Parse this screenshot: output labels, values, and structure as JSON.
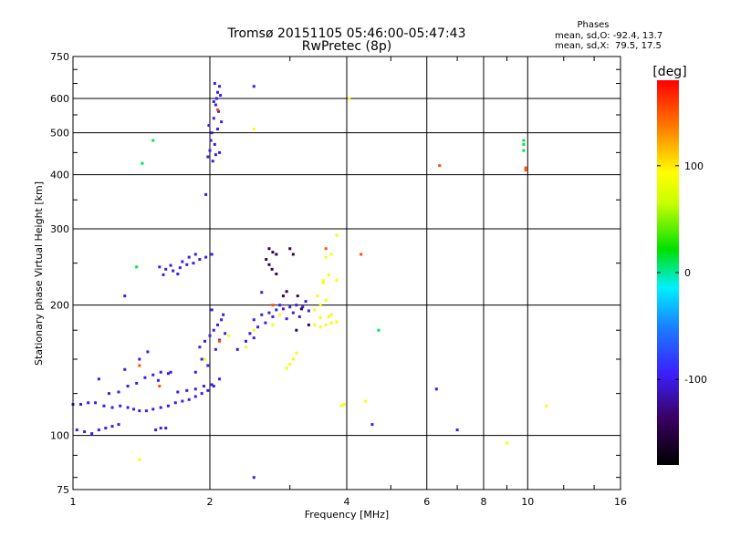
{
  "chart_data": {
    "type": "scatter",
    "title": "Tromsø 20151105 05:46:00-05:47:43",
    "subtitle": "RwPretec (8p)",
    "xlabel": "Frequency [MHz]",
    "ylabel": "Stationary phase Virtual Height [km]",
    "x_scale": "log",
    "y_scale": "log",
    "xlim": [
      1,
      16
    ],
    "ylim": [
      75,
      750
    ],
    "x_ticks": [
      1,
      2,
      4,
      6,
      8,
      10,
      16
    ],
    "y_ticks": [
      75,
      100,
      200,
      300,
      400,
      500,
      600,
      750
    ],
    "grid": true,
    "legend": {
      "title": "Phases",
      "lines": [
        "mean, sd,O: -92.4, 13.7",
        "mean, sd,X:  79.5, 17.5"
      ],
      "position": "top-right"
    },
    "colorbar": {
      "label": "[deg]",
      "min": -180,
      "max": 180,
      "ticks": [
        100,
        0,
        -100
      ]
    },
    "series": [
      {
        "values": [
          [
            1.0,
            118,
            -100
          ],
          [
            1.04,
            118,
            -100
          ],
          [
            1.08,
            119,
            -100
          ],
          [
            1.12,
            119,
            -100
          ],
          [
            1.17,
            117,
            -100
          ],
          [
            1.22,
            116,
            -100
          ],
          [
            1.27,
            117,
            -100
          ],
          [
            1.32,
            116,
            -100
          ],
          [
            1.36,
            115,
            -100
          ],
          [
            1.4,
            114,
            -100
          ],
          [
            1.45,
            114,
            -100
          ],
          [
            1.5,
            115,
            -100
          ],
          [
            1.56,
            116,
            -100
          ],
          [
            1.62,
            117,
            -100
          ],
          [
            1.68,
            119,
            -100
          ],
          [
            1.74,
            120,
            -100
          ],
          [
            1.8,
            121,
            -100
          ],
          [
            1.86,
            123,
            -100
          ],
          [
            1.92,
            125,
            -100
          ],
          [
            1.98,
            127,
            -100
          ],
          [
            2.04,
            130,
            -100
          ],
          [
            2.1,
            135,
            -100
          ],
          [
            1.02,
            103,
            -100
          ],
          [
            1.06,
            102,
            -100
          ],
          [
            1.1,
            101,
            -100
          ],
          [
            1.14,
            103,
            -100
          ],
          [
            1.18,
            104,
            -100
          ],
          [
            1.22,
            105,
            -100
          ],
          [
            1.26,
            106,
            -100
          ],
          [
            1.52,
            103,
            -100
          ],
          [
            1.56,
            104,
            -100
          ],
          [
            1.6,
            104,
            -100
          ],
          [
            1.2,
            125,
            -100
          ],
          [
            1.26,
            126,
            -100
          ],
          [
            1.32,
            130,
            -100
          ],
          [
            1.38,
            132,
            -100
          ],
          [
            1.44,
            136,
            -100
          ],
          [
            1.5,
            138,
            -100
          ],
          [
            1.56,
            140,
            -100
          ],
          [
            1.62,
            139,
            -100
          ],
          [
            1.7,
            126,
            -100
          ],
          [
            1.78,
            127,
            -100
          ],
          [
            1.86,
            128,
            -100
          ],
          [
            1.94,
            130,
            -100
          ],
          [
            2.02,
            131,
            -100
          ],
          [
            1.14,
            135,
            -100
          ],
          [
            1.3,
            142,
            -100
          ],
          [
            1.4,
            150,
            -100
          ],
          [
            1.46,
            156,
            -100
          ],
          [
            1.54,
            134,
            -100
          ],
          [
            1.64,
            140,
            -100
          ],
          [
            1.55,
            245,
            -100
          ],
          [
            1.6,
            242,
            -100
          ],
          [
            1.66,
            240,
            -100
          ],
          [
            1.72,
            244,
            -100
          ],
          [
            1.78,
            248,
            -100
          ],
          [
            1.84,
            250,
            -100
          ],
          [
            1.9,
            255,
            -100
          ],
          [
            1.96,
            258,
            -100
          ],
          [
            2.02,
            262,
            -100
          ],
          [
            1.58,
            235,
            -100
          ],
          [
            1.64,
            247,
            -100
          ],
          [
            1.74,
            252,
            -100
          ],
          [
            1.8,
            258,
            -100
          ],
          [
            1.86,
            262,
            -100
          ],
          [
            1.7,
            236,
            -100
          ],
          [
            1.9,
            160,
            -100
          ],
          [
            1.95,
            165,
            -100
          ],
          [
            2.0,
            170,
            -100
          ],
          [
            2.04,
            175,
            -100
          ],
          [
            2.08,
            180,
            -100
          ],
          [
            2.12,
            185,
            -100
          ],
          [
            1.92,
            150,
            -100
          ],
          [
            1.98,
            145,
            -100
          ],
          [
            2.06,
            158,
            -100
          ],
          [
            2.1,
            166,
            -100
          ],
          [
            2.16,
            172,
            -100
          ],
          [
            1.86,
            140,
            -100
          ],
          [
            2.14,
            190,
            -100
          ],
          [
            2.02,
            195,
            -100
          ],
          [
            2.4,
            165,
            -100
          ],
          [
            2.5,
            168,
            -100
          ],
          [
            2.45,
            172,
            -100
          ],
          [
            2.3,
            158,
            -100
          ],
          [
            2.5,
            185,
            -100
          ],
          [
            2.6,
            190,
            -100
          ],
          [
            2.7,
            192,
            -100
          ],
          [
            2.8,
            195,
            -100
          ],
          [
            2.9,
            196,
            -100
          ],
          [
            3.0,
            198,
            -100
          ],
          [
            3.1,
            200,
            -100
          ],
          [
            3.2,
            198,
            -100
          ],
          [
            3.3,
            194,
            -100
          ],
          [
            2.65,
            182,
            -100
          ],
          [
            2.75,
            188,
            -100
          ],
          [
            2.85,
            200,
            -100
          ],
          [
            2.95,
            186,
            -100
          ],
          [
            3.05,
            192,
            -100
          ],
          [
            3.15,
            188,
            -100
          ],
          [
            3.25,
            204,
            -100
          ],
          [
            2.55,
            178,
            -100
          ],
          [
            2.6,
            214,
            -100
          ],
          [
            2.0,
            455,
            -100
          ],
          [
            2.02,
            500,
            -100
          ],
          [
            2.04,
            540,
            -100
          ],
          [
            2.06,
            580,
            -100
          ],
          [
            2.08,
            620,
            -100
          ],
          [
            2.1,
            640,
            -100
          ],
          [
            2.05,
            470,
            -100
          ],
          [
            2.03,
            430,
            -100
          ],
          [
            1.99,
            520,
            -100
          ],
          [
            2.07,
            600,
            -100
          ],
          [
            2.09,
            560,
            -100
          ],
          [
            2.11,
            610,
            -100
          ],
          [
            2.01,
            480,
            -100
          ],
          [
            2.06,
            445,
            -100
          ],
          [
            2.04,
            590,
            -100
          ],
          [
            2.08,
            510,
            -100
          ],
          [
            2.1,
            450,
            -100
          ],
          [
            1.98,
            440,
            -100
          ],
          [
            2.12,
            530,
            -100
          ],
          [
            2.05,
            650,
            -100
          ],
          [
            2.5,
            640,
            -100
          ],
          [
            2.5,
            80,
            -100
          ],
          [
            1.96,
            360,
            -100
          ],
          [
            1.3,
            210,
            -100
          ],
          [
            4.55,
            106,
            -100
          ],
          [
            6.3,
            128,
            -100
          ],
          [
            7.0,
            103,
            -100
          ]
        ]
      },
      {
        "values": [
          [
            2.7,
            270,
            -140
          ],
          [
            2.75,
            265,
            -140
          ],
          [
            2.8,
            262,
            -140
          ],
          [
            2.66,
            255,
            -140
          ],
          [
            2.7,
            248,
            -140
          ],
          [
            2.74,
            242,
            -140
          ],
          [
            2.8,
            236,
            -140
          ],
          [
            3.0,
            270,
            -140
          ],
          [
            3.05,
            262,
            -140
          ],
          [
            3.12,
            210,
            -140
          ],
          [
            3.18,
            196,
            -140
          ],
          [
            3.3,
            180,
            -140
          ],
          [
            3.1,
            175,
            -140
          ],
          [
            2.9,
            210,
            -140
          ],
          [
            2.95,
            215,
            -140
          ]
        ]
      },
      {
        "values": [
          [
            3.4,
            180,
            85
          ],
          [
            3.5,
            178,
            85
          ],
          [
            3.6,
            180,
            85
          ],
          [
            3.7,
            182,
            85
          ],
          [
            3.8,
            183,
            85
          ],
          [
            3.4,
            195,
            85
          ],
          [
            3.5,
            200,
            85
          ],
          [
            3.6,
            205,
            85
          ],
          [
            3.7,
            190,
            85
          ],
          [
            3.45,
            210,
            85
          ],
          [
            3.55,
            225,
            85
          ],
          [
            3.65,
            235,
            85
          ],
          [
            3.6,
            258,
            85
          ],
          [
            3.7,
            262,
            85
          ],
          [
            3.55,
            228,
            85
          ],
          [
            3.8,
            228,
            85
          ],
          [
            3.5,
            187,
            85
          ],
          [
            3.65,
            188,
            85
          ],
          [
            3.9,
            117,
            85
          ],
          [
            3.95,
            118,
            85
          ],
          [
            3.0,
            146,
            85
          ],
          [
            3.05,
            150,
            85
          ],
          [
            2.95,
            143,
            85
          ],
          [
            3.1,
            155,
            85
          ],
          [
            2.85,
            190,
            85
          ],
          [
            2.75,
            180,
            85
          ],
          [
            2.5,
            175,
            85
          ],
          [
            2.4,
            160,
            85
          ],
          [
            1.95,
            150,
            85
          ],
          [
            2.2,
            170,
            85
          ],
          [
            4.4,
            120,
            85
          ],
          [
            1.4,
            88,
            85
          ],
          [
            9.0,
            96,
            85
          ],
          [
            11.0,
            117,
            85
          ],
          [
            4.05,
            600,
            85
          ],
          [
            3.8,
            290,
            85
          ],
          [
            2.5,
            510,
            85
          ]
        ]
      },
      {
        "values": [
          [
            1.5,
            480,
            10
          ],
          [
            1.42,
            425,
            10
          ],
          [
            9.8,
            480,
            10
          ],
          [
            9.8,
            470,
            10
          ],
          [
            9.8,
            455,
            10
          ],
          [
            4.7,
            175,
            10
          ],
          [
            1.38,
            245,
            10
          ]
        ]
      },
      {
        "values": [
          [
            2.08,
            565,
            150
          ],
          [
            2.1,
            165,
            150
          ],
          [
            2.75,
            200,
            150
          ],
          [
            3.6,
            270,
            150
          ],
          [
            4.3,
            262,
            150
          ],
          [
            1.4,
            145,
            150
          ],
          [
            1.55,
            130,
            150
          ],
          [
            9.9,
            415,
            150
          ],
          [
            9.9,
            410,
            150
          ],
          [
            6.4,
            420,
            150
          ]
        ]
      }
    ]
  }
}
